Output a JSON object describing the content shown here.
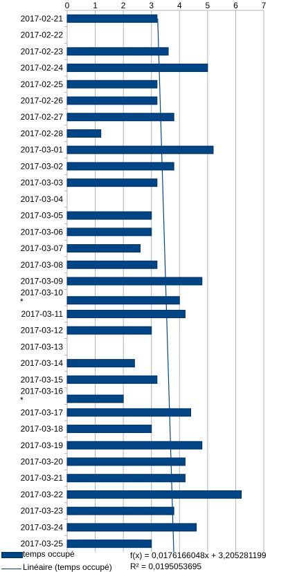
{
  "chart_data": {
    "type": "bar",
    "orientation": "horizontal",
    "categories": [
      "2017-02-21",
      "2017-02-22",
      "2017-02-23",
      "2017-02-24",
      "2017-02-25",
      "2017-02-26",
      "2017-02-27",
      "2017-02-28",
      "2017-03-01",
      "2017-03-02",
      "2017-03-03",
      "2017-03-04",
      "2017-03-05",
      "2017-03-06",
      "2017-03-07",
      "2017-03-08",
      "2017-03-09",
      "2017-03-10 *",
      "2017-03-11",
      "2017-03-12",
      "2017-03-13",
      "2017-03-14",
      "2017-03-15",
      "2017-03-16 *",
      "2017-03-17",
      "2017-03-18",
      "2017-03-19",
      "2017-03-20",
      "2017-03-21",
      "2017-03-22",
      "2017-03-23",
      "2017-03-24",
      "2017-03-25"
    ],
    "series": [
      {
        "name": "temps occupé",
        "values": [
          3.2,
          0,
          3.6,
          5,
          3.2,
          3.2,
          3.8,
          1.2,
          5.2,
          3.8,
          3.2,
          0,
          3,
          3,
          2.6,
          3.2,
          4.8,
          4,
          4.2,
          3,
          0,
          2.4,
          3.2,
          2,
          4.4,
          3,
          4.8,
          4.2,
          4.2,
          6.2,
          3.8,
          4.6,
          3
        ]
      }
    ],
    "trendline": {
      "name": "Linéaire (temps occupé)",
      "slope": 0.0176166048,
      "intercept": 3.205281199,
      "equation": "f(x) = 0,0176166048x + 3,205281199",
      "r2": "R² = 0,0195053695"
    },
    "xlim": [
      0,
      7
    ],
    "xticks": [
      "0",
      "1",
      "2",
      "3",
      "4",
      "5",
      "6",
      "7"
    ],
    "grid": true,
    "x_axis_position": "top",
    "legend_placement": "bottom-left",
    "colors": {
      "bar": "#004586",
      "bar_edge": "#003265",
      "grid": "#b3b3b3",
      "axis": "#b3b3b3",
      "trend": "#004586"
    }
  }
}
